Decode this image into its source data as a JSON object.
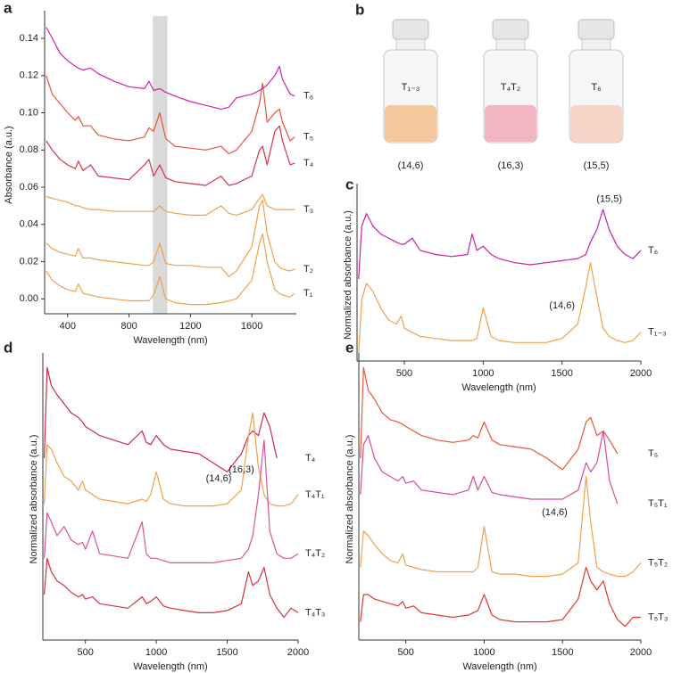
{
  "chart_data": [
    {
      "type": "line",
      "panel_label": "a",
      "xlabel": "Wavelength (nm)",
      "ylabel": "Absorbance (a.u.)",
      "xlim": [
        250,
        1890
      ],
      "ylim": [
        -0.008,
        0.152
      ],
      "xticks": [
        400,
        800,
        1200,
        1600
      ],
      "yticks": [
        {
          "value": 0,
          "label": "0.00"
        },
        {
          "value": 0.02,
          "label": "0.02"
        },
        {
          "value": 0.04,
          "label": "0.04"
        },
        {
          "value": 0.06,
          "label": "0.06"
        },
        {
          "value": 0.08,
          "label": "0.08"
        },
        {
          "value": 0.1,
          "label": "0.10"
        },
        {
          "value": 0.12,
          "label": "0.12"
        },
        {
          "value": 0.14,
          "label": "0.14"
        }
      ],
      "shaded_range": [
        955,
        1050
      ],
      "shade_color": "#d9d9d9",
      "x": [
        260,
        300,
        350,
        400,
        450,
        470,
        500,
        550,
        600,
        700,
        800,
        900,
        930,
        960,
        1000,
        1040,
        1100,
        1200,
        1300,
        1400,
        1450,
        1500,
        1600,
        1650,
        1670,
        1700,
        1750,
        1780,
        1800,
        1850,
        1880
      ],
      "series": [
        {
          "name": "T₁",
          "color": "#f0a050",
          "values": [
            0.015,
            0.01,
            0.007,
            0.005,
            0.004,
            0.008,
            0.003,
            0.002,
            0.001,
            0.0,
            -0.001,
            -0.001,
            -0.001,
            0.002,
            0.012,
            0.0,
            -0.002,
            -0.003,
            -0.003,
            -0.002,
            -0.001,
            0.0,
            0.01,
            0.03,
            0.035,
            0.02,
            0.005,
            0.003,
            0.002,
            0.001,
            0.003
          ]
        },
        {
          "name": "T₂",
          "color": "#f0a050",
          "values": [
            0.03,
            0.027,
            0.025,
            0.024,
            0.023,
            0.027,
            0.022,
            0.022,
            0.021,
            0.02,
            0.019,
            0.018,
            0.018,
            0.02,
            0.03,
            0.019,
            0.018,
            0.018,
            0.017,
            0.017,
            0.012,
            0.015,
            0.028,
            0.05,
            0.053,
            0.035,
            0.02,
            0.017,
            0.016,
            0.015,
            0.016
          ]
        },
        {
          "name": "T₃",
          "color": "#f0a050",
          "values": [
            0.055,
            0.054,
            0.053,
            0.052,
            0.05,
            0.05,
            0.049,
            0.048,
            0.048,
            0.047,
            0.047,
            0.047,
            0.047,
            0.047,
            0.05,
            0.047,
            0.046,
            0.045,
            0.045,
            0.05,
            0.046,
            0.045,
            0.048,
            0.054,
            0.056,
            0.05,
            0.048,
            0.048,
            0.048,
            0.048,
            0.048
          ]
        },
        {
          "name": "T₄",
          "color": "#d8304a",
          "values": [
            0.085,
            0.08,
            0.075,
            0.072,
            0.07,
            0.074,
            0.069,
            0.072,
            0.066,
            0.065,
            0.064,
            0.072,
            0.075,
            0.066,
            0.072,
            0.065,
            0.063,
            0.062,
            0.061,
            0.066,
            0.061,
            0.062,
            0.066,
            0.08,
            0.082,
            0.072,
            0.09,
            0.093,
            0.085,
            0.072,
            0.073
          ]
        },
        {
          "name": "T₅",
          "color": "#e8553a",
          "values": [
            0.12,
            0.11,
            0.105,
            0.1,
            0.096,
            0.098,
            0.093,
            0.093,
            0.088,
            0.086,
            0.085,
            0.087,
            0.092,
            0.09,
            0.1,
            0.086,
            0.082,
            0.081,
            0.08,
            0.082,
            0.078,
            0.08,
            0.09,
            0.105,
            0.116,
            0.095,
            0.1,
            0.102,
            0.095,
            0.085,
            0.087
          ]
        },
        {
          "name": "T₆",
          "color": "#d020b0",
          "values": [
            0.146,
            0.14,
            0.132,
            0.128,
            0.125,
            0.124,
            0.123,
            0.124,
            0.121,
            0.117,
            0.114,
            0.113,
            0.117,
            0.112,
            0.113,
            0.111,
            0.109,
            0.106,
            0.104,
            0.102,
            0.103,
            0.108,
            0.11,
            0.112,
            0.113,
            0.115,
            0.12,
            0.125,
            0.118,
            0.11,
            0.109
          ]
        }
      ]
    },
    {
      "type": "line",
      "panel_label": "c",
      "xlabel": "Wavelength (nm)",
      "ylabel": "Normalized absorbance (a.u.)",
      "xlim": [
        200,
        2000
      ],
      "ylim": [
        0,
        4.2
      ],
      "xticks": [
        500,
        1000,
        1500,
        2000
      ],
      "annotations": [
        "(15,5)",
        "(14,6)"
      ],
      "x": [
        210,
        230,
        260,
        300,
        350,
        400,
        450,
        480,
        500,
        550,
        600,
        700,
        800,
        900,
        930,
        960,
        1000,
        1050,
        1100,
        1200,
        1300,
        1400,
        1500,
        1600,
        1650,
        1680,
        1720,
        1760,
        1800,
        1850,
        1900,
        1950,
        2000
      ],
      "series": [
        {
          "name": "T₆",
          "color": "#c81eaa",
          "values": [
            2.0,
            3.3,
            3.6,
            3.3,
            3.1,
            3.0,
            2.9,
            2.85,
            2.85,
            3.0,
            2.7,
            2.6,
            2.55,
            2.6,
            3.1,
            2.7,
            2.8,
            2.6,
            2.5,
            2.4,
            2.35,
            2.4,
            2.45,
            2.5,
            2.6,
            2.9,
            3.2,
            3.7,
            3.2,
            2.8,
            2.6,
            2.5,
            2.7
          ]
        },
        {
          "name": "T₁₋₃",
          "color": "#f0a050",
          "values": [
            0.2,
            1.5,
            1.9,
            1.7,
            1.3,
            1.0,
            0.9,
            1.1,
            0.8,
            0.7,
            0.6,
            0.55,
            0.5,
            0.5,
            0.5,
            0.55,
            1.3,
            0.6,
            0.5,
            0.45,
            0.45,
            0.45,
            0.55,
            0.9,
            1.8,
            2.4,
            1.6,
            0.8,
            0.6,
            0.5,
            0.45,
            0.5,
            0.7
          ]
        }
      ]
    },
    {
      "type": "line",
      "panel_label": "d",
      "xlabel": "Wavelength (nm)",
      "ylabel": "Normalized absorbance (a.u.)",
      "xlim": [
        200,
        2000
      ],
      "ylim": [
        0,
        6.2
      ],
      "xticks": [
        500,
        1000,
        1500,
        2000
      ],
      "annotations": [
        "(14,6)",
        "(16,3)"
      ],
      "x": [
        210,
        230,
        260,
        300,
        350,
        400,
        450,
        480,
        500,
        550,
        600,
        700,
        800,
        900,
        930,
        960,
        1000,
        1050,
        1100,
        1200,
        1300,
        1400,
        1500,
        1600,
        1650,
        1680,
        1720,
        1760,
        1800,
        1850,
        1900,
        1950,
        2000
      ],
      "series": [
        {
          "name": "T₄",
          "color": "#d02848",
          "values": [
            4.0,
            6.0,
            5.6,
            5.4,
            5.2,
            5.0,
            4.9,
            4.8,
            4.7,
            4.6,
            4.5,
            4.4,
            4.3,
            4.6,
            4.35,
            4.3,
            4.5,
            4.3,
            4.2,
            4.15,
            4.1,
            3.9,
            3.7,
            4.1,
            4.5,
            4.6,
            4.5,
            5.0,
            4.7,
            4.0,
            null,
            null,
            null
          ]
        },
        {
          "name": "T₄T₁",
          "color": "#f0a050",
          "values": [
            3.0,
            4.3,
            4.2,
            3.9,
            3.6,
            3.5,
            3.3,
            3.5,
            3.3,
            3.2,
            3.1,
            3.05,
            3.0,
            3.1,
            3.05,
            3.2,
            3.7,
            3.1,
            3.0,
            2.95,
            2.95,
            2.95,
            3.0,
            3.3,
            4.5,
            5.0,
            3.8,
            3.2,
            3.0,
            2.95,
            2.95,
            3.0,
            3.2
          ]
        },
        {
          "name": "T₄T₂",
          "color": "#e0509a",
          "values": [
            1.8,
            2.8,
            2.6,
            2.3,
            2.5,
            2.2,
            2.1,
            2.15,
            2.0,
            2.4,
            1.9,
            1.85,
            1.8,
            2.6,
            1.9,
            1.8,
            1.8,
            1.75,
            1.7,
            1.7,
            1.7,
            1.7,
            1.75,
            1.8,
            2.0,
            2.3,
            3.2,
            4.4,
            2.4,
            1.9,
            1.8,
            1.8,
            1.9
          ]
        },
        {
          "name": "T₄T₃",
          "color": "#d83040",
          "values": [
            1.0,
            1.8,
            1.5,
            1.3,
            1.2,
            1.05,
            0.95,
            1.0,
            0.9,
            0.95,
            0.8,
            0.75,
            0.7,
            0.95,
            0.8,
            0.85,
            0.95,
            0.75,
            0.7,
            0.65,
            0.6,
            0.6,
            0.65,
            0.8,
            1.5,
            1.2,
            1.3,
            1.6,
            1.0,
            0.7,
            0.5,
            0.7,
            0.6
          ]
        }
      ]
    },
    {
      "type": "line",
      "panel_label": "e",
      "xlabel": "Wavelength (nm)",
      "ylabel": "Normalized absorbance (a.u.)",
      "xlim": [
        200,
        2000
      ],
      "ylim": [
        0,
        6.2
      ],
      "xticks": [
        500,
        1000,
        1500,
        2000
      ],
      "annotations": [
        "(14,6)"
      ],
      "x": [
        210,
        230,
        260,
        300,
        350,
        400,
        450,
        480,
        500,
        550,
        600,
        700,
        800,
        900,
        930,
        960,
        1000,
        1050,
        1100,
        1200,
        1300,
        1400,
        1500,
        1600,
        1650,
        1680,
        1720,
        1760,
        1800,
        1850,
        1900,
        1950,
        2000
      ],
      "series": [
        {
          "name": "T₅",
          "color": "#e8553a",
          "values": [
            4.0,
            6.0,
            5.5,
            5.3,
            5.0,
            4.85,
            4.8,
            4.75,
            4.7,
            4.6,
            4.5,
            4.4,
            4.35,
            4.4,
            4.5,
            4.45,
            4.8,
            4.4,
            4.3,
            4.25,
            4.2,
            4.0,
            3.75,
            4.2,
            4.8,
            4.9,
            4.5,
            4.6,
            4.4,
            4.1,
            null,
            null,
            null
          ]
        },
        {
          "name": "T₅T₁",
          "color": "#d84aa0",
          "values": [
            3.2,
            4.3,
            4.5,
            4.0,
            3.7,
            3.6,
            3.5,
            3.6,
            3.45,
            3.5,
            3.3,
            3.25,
            3.2,
            3.3,
            3.6,
            3.3,
            3.6,
            3.25,
            3.2,
            3.15,
            3.1,
            3.1,
            3.1,
            3.3,
            3.9,
            3.7,
            3.9,
            4.6,
            3.5,
            3.0,
            null,
            null,
            null
          ]
        },
        {
          "name": "T₅T₂",
          "color": "#f0a050",
          "values": [
            1.6,
            2.4,
            2.3,
            2.1,
            1.9,
            1.75,
            1.7,
            1.9,
            1.65,
            1.6,
            1.55,
            1.5,
            1.5,
            1.5,
            1.5,
            1.6,
            2.5,
            1.5,
            1.45,
            1.45,
            1.4,
            1.4,
            1.45,
            1.7,
            3.6,
            2.6,
            1.6,
            1.5,
            1.45,
            1.4,
            1.4,
            1.5,
            1.7
          ]
        },
        {
          "name": "T₅T₃",
          "color": "#e03a2a",
          "values": [
            0.4,
            1.0,
            1.0,
            0.9,
            0.85,
            0.8,
            0.75,
            0.85,
            0.7,
            0.75,
            0.6,
            0.55,
            0.5,
            0.55,
            0.6,
            0.65,
            1.0,
            0.55,
            0.45,
            0.4,
            0.4,
            0.4,
            0.45,
            0.9,
            1.6,
            1.3,
            1.1,
            1.3,
            0.8,
            0.45,
            0.3,
            0.5,
            0.5
          ]
        }
      ]
    }
  ],
  "photo": {
    "panel_label": "b",
    "vials": [
      {
        "label": "T₁₋₃",
        "chirality": "(14,6)",
        "color": "#f4c79c"
      },
      {
        "label": "T₄T₂",
        "chirality": "(16,3)",
        "color": "#f2b6c2"
      },
      {
        "label": "T₆",
        "chirality": "(15,5)",
        "color": "#f6d4c8"
      }
    ]
  }
}
